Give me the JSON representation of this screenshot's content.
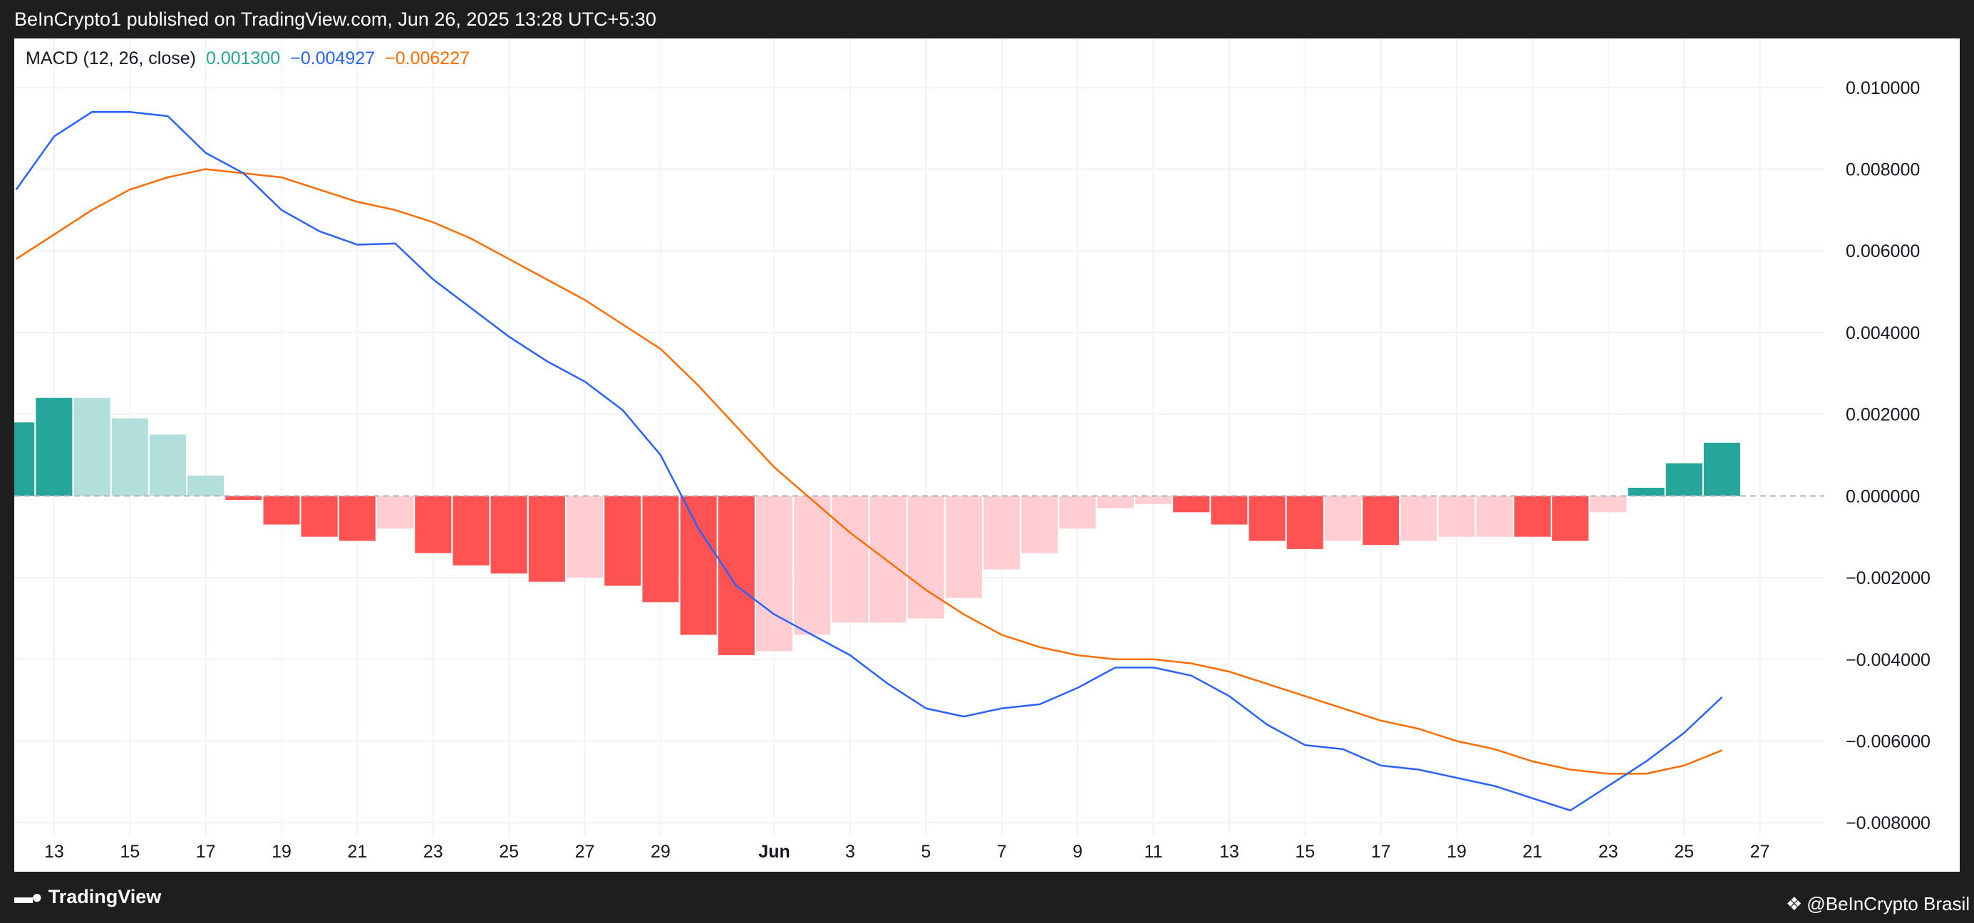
{
  "header": {
    "publish_text": "BeInCrypto1 published on TradingView.com, Jun 26, 2025 13:28 UTC+5:30"
  },
  "footer": {
    "brand": "TradingView",
    "brand_icon": "tradingview-logo-icon",
    "publisher": "@BeInCrypto Brasil",
    "publisher_icon": "diamond-logo-icon"
  },
  "legend": {
    "indicator": "MACD (12, 26, close)",
    "histogram_value": "0.001300",
    "macd_value": "−0.004927",
    "signal_value": "−0.006227"
  },
  "colors": {
    "macd_line": "#2962ff",
    "signal_line": "#ff6d00",
    "hist_pos_strong": "#26a69a",
    "hist_pos_weak": "#b2dfdb",
    "hist_neg_strong": "#ff5252",
    "hist_neg_weak": "#ffcdd2",
    "zero_line": "#b2b5be"
  },
  "chart_data": {
    "type": "line",
    "indicator": "MACD (12, 26, close)",
    "x_ticks": [
      {
        "x": 0,
        "label": "13"
      },
      {
        "x": 2,
        "label": "15"
      },
      {
        "x": 4,
        "label": "17"
      },
      {
        "x": 6,
        "label": "19"
      },
      {
        "x": 8,
        "label": "21"
      },
      {
        "x": 10,
        "label": "23"
      },
      {
        "x": 12,
        "label": "25"
      },
      {
        "x": 14,
        "label": "27"
      },
      {
        "x": 16,
        "label": "29"
      },
      {
        "x": 19,
        "label": "Jun",
        "bold": true
      },
      {
        "x": 21,
        "label": "3"
      },
      {
        "x": 23,
        "label": "5"
      },
      {
        "x": 25,
        "label": "7"
      },
      {
        "x": 27,
        "label": "9"
      },
      {
        "x": 29,
        "label": "11"
      },
      {
        "x": 31,
        "label": "13"
      },
      {
        "x": 33,
        "label": "15"
      },
      {
        "x": 35,
        "label": "17"
      },
      {
        "x": 37,
        "label": "19"
      },
      {
        "x": 39,
        "label": "21"
      },
      {
        "x": 41,
        "label": "23"
      },
      {
        "x": 43,
        "label": "25"
      },
      {
        "x": 45,
        "label": "27"
      }
    ],
    "y_ticks": [
      "0.010000",
      "0.008000",
      "0.006000",
      "0.004000",
      "0.002000",
      "0.000000",
      "−0.002000",
      "−0.004000",
      "−0.006000",
      "−0.008000"
    ],
    "ylim": [
      -0.0092,
      0.0112
    ],
    "xlim": [
      -1.05,
      46.7
    ],
    "series": [
      {
        "name": "MACD",
        "values": [
          [
            -1,
            0.0075
          ],
          [
            0,
            0.0088
          ],
          [
            1,
            0.0094
          ],
          [
            2,
            0.0094
          ],
          [
            3,
            0.0093
          ],
          [
            4,
            0.0084
          ],
          [
            5,
            0.0079
          ],
          [
            6,
            0.007
          ],
          [
            7,
            0.00648
          ],
          [
            8,
            0.00615
          ],
          [
            9,
            0.00618
          ],
          [
            10,
            0.0053
          ],
          [
            11,
            0.0046
          ],
          [
            12,
            0.0039
          ],
          [
            13,
            0.0033
          ],
          [
            14,
            0.0028
          ],
          [
            15,
            0.0021
          ],
          [
            16,
            0.001
          ],
          [
            17,
            -0.0008
          ],
          [
            18,
            -0.0022
          ],
          [
            19,
            -0.0029
          ],
          [
            20,
            -0.0034
          ],
          [
            21,
            -0.0039
          ],
          [
            22,
            -0.0046
          ],
          [
            23,
            -0.0052
          ],
          [
            24,
            -0.0054
          ],
          [
            25,
            -0.0052
          ],
          [
            26,
            -0.0051
          ],
          [
            27,
            -0.0047
          ],
          [
            28,
            -0.0042
          ],
          [
            29,
            -0.0042
          ],
          [
            30,
            -0.0044
          ],
          [
            31,
            -0.0049
          ],
          [
            32,
            -0.0056
          ],
          [
            33,
            -0.0061
          ],
          [
            34,
            -0.0062
          ],
          [
            35,
            -0.0066
          ],
          [
            36,
            -0.0067
          ],
          [
            37,
            -0.0069
          ],
          [
            38,
            -0.0071
          ],
          [
            39,
            -0.0074
          ],
          [
            40,
            -0.0077
          ],
          [
            41,
            -0.0071
          ],
          [
            42,
            -0.0065
          ],
          [
            43,
            -0.0058
          ],
          [
            44,
            -0.004927
          ]
        ]
      },
      {
        "name": "Signal",
        "values": [
          [
            -1,
            0.0058
          ],
          [
            0,
            0.0064
          ],
          [
            1,
            0.007
          ],
          [
            2,
            0.0075
          ],
          [
            3,
            0.0078
          ],
          [
            4,
            0.008
          ],
          [
            5,
            0.0079
          ],
          [
            6,
            0.0078
          ],
          [
            7,
            0.0075
          ],
          [
            8,
            0.0072
          ],
          [
            9,
            0.007
          ],
          [
            10,
            0.0067
          ],
          [
            11,
            0.0063
          ],
          [
            12,
            0.0058
          ],
          [
            13,
            0.0053
          ],
          [
            14,
            0.0048
          ],
          [
            15,
            0.0042
          ],
          [
            16,
            0.0036
          ],
          [
            17,
            0.0027
          ],
          [
            18,
            0.0017
          ],
          [
            19,
            0.0007
          ],
          [
            20,
            -0.0001
          ],
          [
            21,
            -0.0009
          ],
          [
            22,
            -0.0016
          ],
          [
            23,
            -0.0023
          ],
          [
            24,
            -0.0029
          ],
          [
            25,
            -0.0034
          ],
          [
            26,
            -0.0037
          ],
          [
            27,
            -0.0039
          ],
          [
            28,
            -0.004
          ],
          [
            29,
            -0.004
          ],
          [
            30,
            -0.0041
          ],
          [
            31,
            -0.0043
          ],
          [
            32,
            -0.0046
          ],
          [
            33,
            -0.0049
          ],
          [
            34,
            -0.0052
          ],
          [
            35,
            -0.0055
          ],
          [
            36,
            -0.0057
          ],
          [
            37,
            -0.006
          ],
          [
            38,
            -0.0062
          ],
          [
            39,
            -0.0065
          ],
          [
            40,
            -0.0067
          ],
          [
            41,
            -0.0068
          ],
          [
            42,
            -0.0068
          ],
          [
            43,
            -0.0066
          ],
          [
            44,
            -0.006227
          ]
        ]
      },
      {
        "name": "Histogram",
        "values": [
          [
            -1,
            0.0018,
            "pos_strong"
          ],
          [
            0,
            0.0024,
            "pos_strong"
          ],
          [
            1,
            0.0024,
            "pos_weak"
          ],
          [
            2,
            0.0019,
            "pos_weak"
          ],
          [
            3,
            0.0015,
            "pos_weak"
          ],
          [
            4,
            0.0005,
            "pos_weak"
          ],
          [
            5,
            -0.0001,
            "neg_strong"
          ],
          [
            6,
            -0.0007,
            "neg_strong"
          ],
          [
            7,
            -0.001,
            "neg_strong"
          ],
          [
            8,
            -0.0011,
            "neg_strong"
          ],
          [
            9,
            -0.0008,
            "neg_weak"
          ],
          [
            10,
            -0.0014,
            "neg_strong"
          ],
          [
            11,
            -0.0017,
            "neg_strong"
          ],
          [
            12,
            -0.0019,
            "neg_strong"
          ],
          [
            13,
            -0.0021,
            "neg_strong"
          ],
          [
            14,
            -0.002,
            "neg_weak"
          ],
          [
            15,
            -0.0022,
            "neg_strong"
          ],
          [
            16,
            -0.0026,
            "neg_strong"
          ],
          [
            17,
            -0.0034,
            "neg_strong"
          ],
          [
            18,
            -0.0039,
            "neg_strong"
          ],
          [
            19,
            -0.0038,
            "neg_weak"
          ],
          [
            20,
            -0.0034,
            "neg_weak"
          ],
          [
            21,
            -0.0031,
            "neg_weak"
          ],
          [
            22,
            -0.0031,
            "neg_weak"
          ],
          [
            23,
            -0.003,
            "neg_weak"
          ],
          [
            24,
            -0.0025,
            "neg_weak"
          ],
          [
            25,
            -0.0018,
            "neg_weak"
          ],
          [
            26,
            -0.0014,
            "neg_weak"
          ],
          [
            27,
            -0.0008,
            "neg_weak"
          ],
          [
            28,
            -0.0003,
            "neg_weak"
          ],
          [
            29,
            -0.0002,
            "neg_weak"
          ],
          [
            30,
            -0.0004,
            "neg_strong"
          ],
          [
            31,
            -0.0007,
            "neg_strong"
          ],
          [
            32,
            -0.0011,
            "neg_strong"
          ],
          [
            33,
            -0.0013,
            "neg_strong"
          ],
          [
            34,
            -0.0011,
            "neg_weak"
          ],
          [
            35,
            -0.0012,
            "neg_strong"
          ],
          [
            36,
            -0.0011,
            "neg_weak"
          ],
          [
            37,
            -0.001,
            "neg_weak"
          ],
          [
            38,
            -0.001,
            "neg_weak"
          ],
          [
            39,
            -0.001,
            "neg_strong"
          ],
          [
            40,
            -0.0011,
            "neg_strong"
          ],
          [
            41,
            -0.0004,
            "neg_weak"
          ],
          [
            42,
            0.0002,
            "pos_strong"
          ],
          [
            43,
            0.0008,
            "pos_strong"
          ],
          [
            44,
            0.0013,
            "pos_strong"
          ]
        ]
      }
    ],
    "grid": true,
    "zero_line": "dashed",
    "legend": "top-left"
  }
}
